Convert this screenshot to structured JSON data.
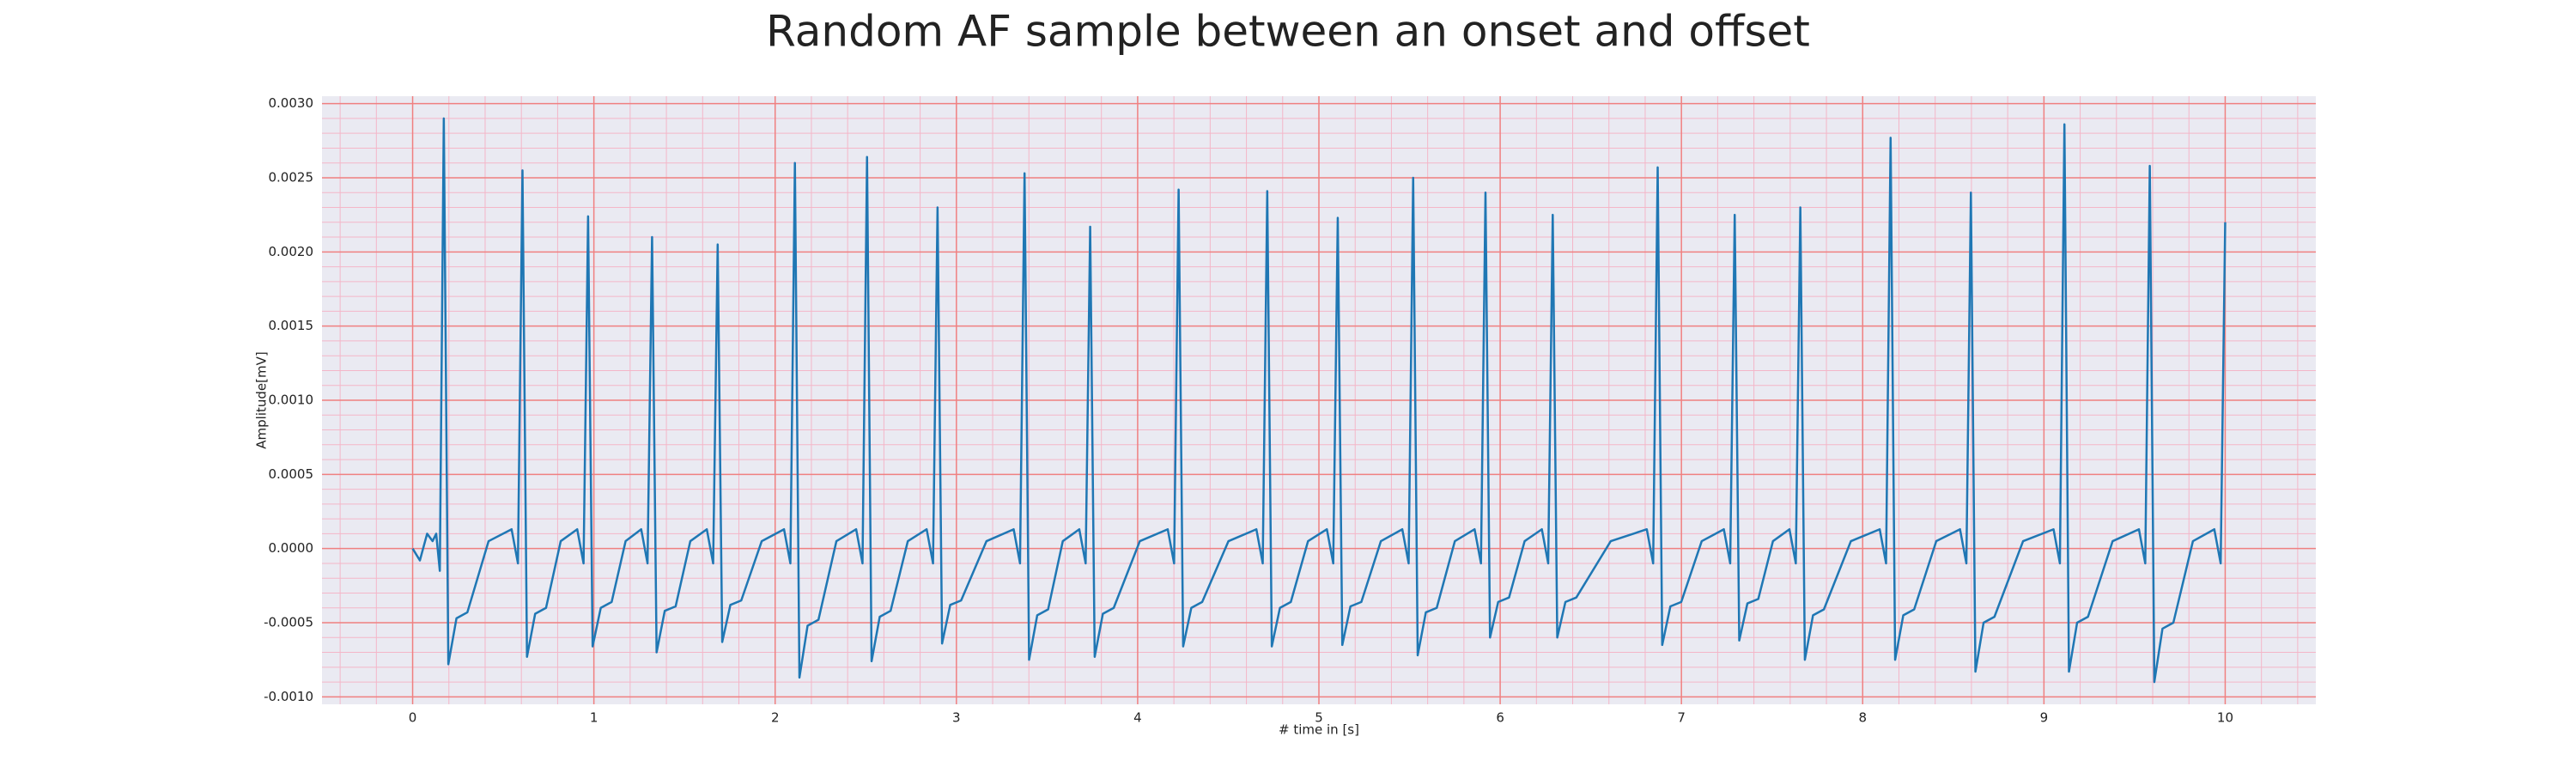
{
  "chart_data": {
    "type": "line",
    "title": "Random AF sample between an onset and offset",
    "xlabel": "# time in [s]",
    "ylabel": "Amplitude[mV]",
    "xlim": [
      -0.5,
      10.5
    ],
    "ylim": [
      -0.00105,
      0.00305
    ],
    "xticks": [
      0,
      1,
      2,
      3,
      4,
      5,
      6,
      7,
      8,
      9,
      10
    ],
    "yticks": [
      {
        "value": -0.001,
        "label": "-0.0010"
      },
      {
        "value": -0.0005,
        "label": "-0.0005"
      },
      {
        "value": 0,
        "label": "0.0000"
      },
      {
        "value": 0.0005,
        "label": "0.0005"
      },
      {
        "value": 0.001,
        "label": "0.0010"
      },
      {
        "value": 0.0015,
        "label": "0.0015"
      },
      {
        "value": 0.002,
        "label": "0.0020"
      },
      {
        "value": 0.0025,
        "label": "0.0025"
      },
      {
        "value": 0.003,
        "label": "0.0030"
      }
    ],
    "grid": true,
    "color": "#1f77b4",
    "x": [
      0,
      0.04,
      0.08,
      0.11,
      0.13,
      0.15,
      0.172,
      0.197,
      0.242,
      0.302,
      0.419,
      0.546,
      0.581,
      0.606,
      0.631,
      0.676,
      0.736,
      0.817,
      0.908,
      0.943,
      0.968,
      0.993,
      1.038,
      1.098,
      1.175,
      1.261,
      1.296,
      1.321,
      1.346,
      1.391,
      1.451,
      1.532,
      1.623,
      1.658,
      1.683,
      1.708,
      1.753,
      1.813,
      1.926,
      2.049,
      2.084,
      2.109,
      2.134,
      2.179,
      2.239,
      2.338,
      2.447,
      2.482,
      2.507,
      2.532,
      2.577,
      2.637,
      2.732,
      2.836,
      2.871,
      2.896,
      2.921,
      2.966,
      3.026,
      3.166,
      3.316,
      3.351,
      3.376,
      3.401,
      3.446,
      3.506,
      3.587,
      3.678,
      3.713,
      3.738,
      3.763,
      3.808,
      3.868,
      4.012,
      4.166,
      4.201,
      4.226,
      4.251,
      4.296,
      4.356,
      4.501,
      4.655,
      4.69,
      4.715,
      4.74,
      4.785,
      4.845,
      4.94,
      5.044,
      5.079,
      5.104,
      5.129,
      5.174,
      5.234,
      5.342,
      5.46,
      5.495,
      5.52,
      5.545,
      5.59,
      5.65,
      5.75,
      5.859,
      5.894,
      5.919,
      5.944,
      5.989,
      6.049,
      6.135,
      6.23,
      6.265,
      6.29,
      6.315,
      6.36,
      6.42,
      6.61,
      6.809,
      6.844,
      6.869,
      6.894,
      6.939,
      6.999,
      7.112,
      7.234,
      7.269,
      7.294,
      7.319,
      7.364,
      7.424,
      7.505,
      7.596,
      7.631,
      7.656,
      7.681,
      7.726,
      7.786,
      7.935,
      8.094,
      8.129,
      8.154,
      8.179,
      8.224,
      8.284,
      8.406,
      8.537,
      8.572,
      8.597,
      8.622,
      8.667,
      8.727,
      8.885,
      9.053,
      9.088,
      9.113,
      9.138,
      9.183,
      9.243,
      9.379,
      9.524,
      9.559,
      9.584,
      9.609,
      9.654,
      9.714,
      9.822,
      9.94,
      9.975,
      10.0
    ],
    "values": [
      0,
      -8e-05,
      0.0001,
      5e-05,
      0.0001,
      -0.00015,
      0.0029,
      -0.00078,
      -0.00047,
      -0.00043,
      5e-05,
      0.00013,
      -0.0001,
      0.00255,
      -0.00073,
      -0.00044,
      -0.0004,
      5e-05,
      0.00013,
      -0.0001,
      0.00224,
      -0.00066,
      -0.0004,
      -0.00036,
      5e-05,
      0.00013,
      -0.0001,
      0.0021,
      -0.0007,
      -0.00042,
      -0.00039,
      5e-05,
      0.00013,
      -0.0001,
      0.00205,
      -0.00063,
      -0.00038,
      -0.00035,
      5e-05,
      0.00013,
      -0.0001,
      0.0026,
      -0.00087,
      -0.00052,
      -0.00048,
      5e-05,
      0.00013,
      -0.0001,
      0.00264,
      -0.00076,
      -0.00046,
      -0.00042,
      5e-05,
      0.00013,
      -0.0001,
      0.0023,
      -0.00064,
      -0.00038,
      -0.00035,
      5e-05,
      0.00013,
      -0.0001,
      0.00253,
      -0.00075,
      -0.00045,
      -0.00041,
      5e-05,
      0.00013,
      -0.0001,
      0.00217,
      -0.00073,
      -0.00044,
      -0.0004,
      5e-05,
      0.00013,
      -0.0001,
      0.00242,
      -0.00066,
      -0.0004,
      -0.00036,
      5e-05,
      0.00013,
      -0.0001,
      0.00241,
      -0.00066,
      -0.0004,
      -0.00036,
      5e-05,
      0.00013,
      -0.0001,
      0.00223,
      -0.00065,
      -0.00039,
      -0.00036,
      5e-05,
      0.00013,
      -0.0001,
      0.0025,
      -0.00072,
      -0.00043,
      -0.0004,
      5e-05,
      0.00013,
      -0.0001,
      0.0024,
      -0.0006,
      -0.00036,
      -0.00033,
      5e-05,
      0.00013,
      -0.0001,
      0.00225,
      -0.0006,
      -0.00036,
      -0.00033,
      5e-05,
      0.00013,
      -0.0001,
      0.00257,
      -0.00065,
      -0.00039,
      -0.00036,
      5e-05,
      0.00013,
      -0.0001,
      0.00225,
      -0.00062,
      -0.00037,
      -0.00034,
      5e-05,
      0.00013,
      -0.0001,
      0.0023,
      -0.00075,
      -0.00045,
      -0.00041,
      5e-05,
      0.00013,
      -0.0001,
      0.00277,
      -0.00075,
      -0.00045,
      -0.00041,
      5e-05,
      0.00013,
      -0.0001,
      0.0024,
      -0.00083,
      -0.0005,
      -0.00046,
      5e-05,
      0.00013,
      -0.0001,
      0.00286,
      -0.00083,
      -0.0005,
      -0.00046,
      5e-05,
      0.00013,
      -0.0001,
      0.00258,
      -0.0009,
      -0.00054,
      -0.0005,
      5e-05,
      0.00013,
      -0.0001,
      0.0022
    ]
  }
}
